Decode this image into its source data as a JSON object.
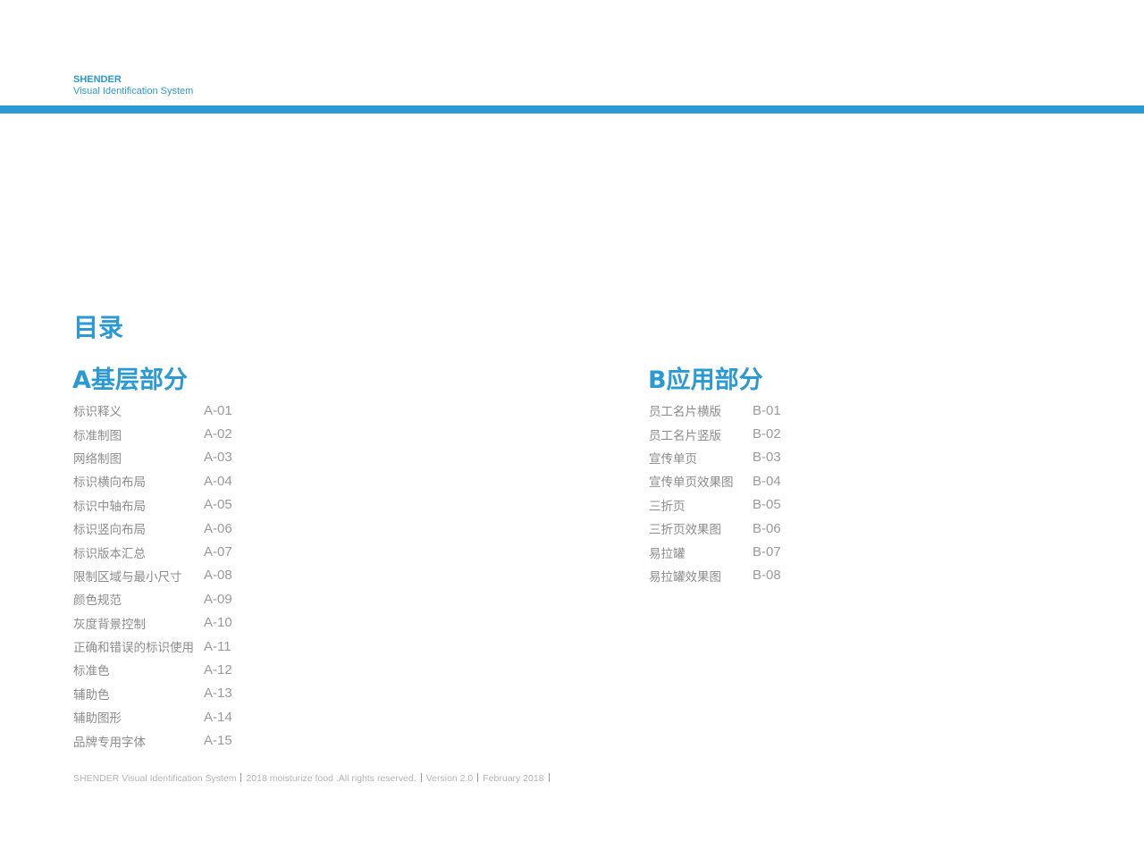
{
  "header": {
    "brand_name": "SHENDER",
    "brand_subtitle": "Visual Identification System",
    "accent_color": "#2a9ad4"
  },
  "toc": {
    "title": "目录",
    "section_a": {
      "heading": "A基层部分",
      "items": [
        {
          "label": "标识释义",
          "code": "A-01"
        },
        {
          "label": "标准制图",
          "code": "A-02"
        },
        {
          "label": "网络制图",
          "code": "A-03"
        },
        {
          "label": "标识横向布局",
          "code": "A-04"
        },
        {
          "label": "标识中轴布局",
          "code": "A-05"
        },
        {
          "label": "标识竖向布局",
          "code": "A-06"
        },
        {
          "label": "标识版本汇总",
          "code": "A-07"
        },
        {
          "label": "限制区域与最小尺寸",
          "code": "A-08"
        },
        {
          "label": "颜色规范",
          "code": "A-09"
        },
        {
          "label": "灰度背景控制",
          "code": "A-10"
        },
        {
          "label": "正确和错误的标识使用",
          "code": "A-11"
        },
        {
          "label": "标准色",
          "code": "A-12"
        },
        {
          "label": "辅助色",
          "code": "A-13"
        },
        {
          "label": "辅助图形",
          "code": "A-14"
        },
        {
          "label": "品牌专用字体",
          "code": "A-15"
        }
      ]
    },
    "section_b": {
      "heading": "B应用部分",
      "items": [
        {
          "label": "员工名片横版",
          "code": "B-01"
        },
        {
          "label": "员工名片竖版",
          "code": "B-02"
        },
        {
          "label": "宣传单页",
          "code": "B-03"
        },
        {
          "label": "宣传单页效果图",
          "code": "B-04"
        },
        {
          "label": "三折页",
          "code": "B-05"
        },
        {
          "label": "三折页效果图",
          "code": "B-06"
        },
        {
          "label": "易拉罐",
          "code": "B-07"
        },
        {
          "label": "易拉罐效果图",
          "code": "B-08"
        }
      ]
    }
  },
  "footer": {
    "system": "SHENDER Visual Identification System",
    "rights": "2018 moisturize food .All rights reserved.",
    "version": "Version 2.0",
    "date": "February 2018"
  }
}
